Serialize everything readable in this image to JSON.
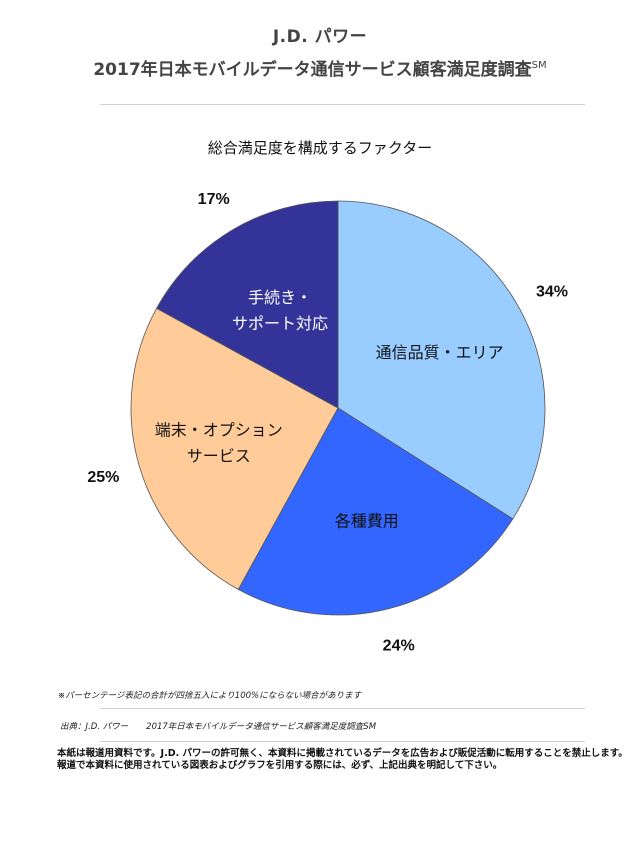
{
  "header": {
    "brand": "J.D. パワー",
    "title": "2017年日本モバイルデータ通信サービス顧客満足度調査",
    "title_mark": "SM"
  },
  "chart_data": {
    "type": "pie",
    "title": "総合満足度を構成するファクター",
    "start_angle_deg": 0,
    "direction": "clockwise",
    "slices": [
      {
        "label_lines": [
          "通信品質・エリア"
        ],
        "value": 34,
        "percent_label": "34%",
        "color": "#99CCFF"
      },
      {
        "label_lines": [
          "各種費用"
        ],
        "value": 24,
        "percent_label": "24%",
        "color": "#3366FF"
      },
      {
        "label_lines": [
          "端末・オプション",
          "サービス"
        ],
        "value": 25,
        "percent_label": "25%",
        "color": "#FFCC99"
      },
      {
        "label_lines": [
          "手続き・",
          "サポート対応"
        ],
        "value": 17,
        "percent_label": "17%",
        "color": "#333399"
      }
    ]
  },
  "footer": {
    "note": "※パーセンテージ表記の合計が四捨五入により100%にならない場合があります",
    "source_prefix": "出典：J.D. パワー",
    "source_title": "2017年日本モバイルデータ通信サービス顧客満足度調査SM",
    "disclaimer_lines": [
      "本紙は報道用資料です。J.D. パワーの許可無く、本資料に掲載されているデータを広告および販促活動に転用することを禁止します。",
      "報道で本資料に使用されている図表およびグラフを引用する際には、必ず、上記出典を明記して下さい。"
    ]
  }
}
